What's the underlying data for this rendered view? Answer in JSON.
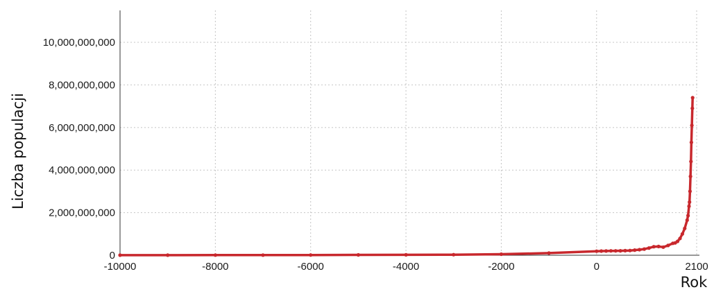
{
  "chart_data": {
    "type": "line",
    "title": "",
    "xlabel": "Rok",
    "ylabel": "Liczba populacji",
    "xlim": [
      -10000,
      2100
    ],
    "ylim": [
      0,
      11500000000
    ],
    "x_ticks": [
      -10000,
      -8000,
      -6000,
      -4000,
      -2000,
      0,
      2100
    ],
    "x_tick_labels": [
      "-10000",
      "-8000",
      "-6000",
      "-4000",
      "-2000",
      "0",
      "2100"
    ],
    "y_ticks": [
      0,
      2000000000,
      4000000000,
      6000000000,
      8000000000,
      10000000000
    ],
    "y_tick_labels": [
      "0",
      "2,000,000,000",
      "4,000,000,000",
      "6,000,000,000",
      "8,000,000,000",
      "10,000,000,000"
    ],
    "grid": true,
    "legend": "none",
    "series": [
      {
        "color": "#c8282d",
        "points": [
          [
            -10000,
            2000000
          ],
          [
            -9000,
            3000000
          ],
          [
            -8000,
            5000000
          ],
          [
            -7000,
            7000000
          ],
          [
            -6000,
            10000000
          ],
          [
            -5000,
            15000000
          ],
          [
            -4000,
            20000000
          ],
          [
            -3000,
            25000000
          ],
          [
            -2000,
            50000000
          ],
          [
            -1000,
            100000000
          ],
          [
            0,
            190000000
          ],
          [
            100,
            195000000
          ],
          [
            200,
            200000000
          ],
          [
            300,
            205000000
          ],
          [
            400,
            205000000
          ],
          [
            500,
            210000000
          ],
          [
            600,
            215000000
          ],
          [
            700,
            220000000
          ],
          [
            800,
            240000000
          ],
          [
            900,
            260000000
          ],
          [
            1000,
            290000000
          ],
          [
            1100,
            340000000
          ],
          [
            1200,
            400000000
          ],
          [
            1300,
            410000000
          ],
          [
            1400,
            380000000
          ],
          [
            1500,
            460000000
          ],
          [
            1600,
            560000000
          ],
          [
            1650,
            580000000
          ],
          [
            1700,
            650000000
          ],
          [
            1750,
            790000000
          ],
          [
            1800,
            1000000000
          ],
          [
            1850,
            1260000000
          ],
          [
            1900,
            1650000000
          ],
          [
            1920,
            1860000000
          ],
          [
            1940,
            2300000000
          ],
          [
            1950,
            2500000000
          ],
          [
            1960,
            3000000000
          ],
          [
            1970,
            3700000000
          ],
          [
            1980,
            4400000000
          ],
          [
            1990,
            5300000000
          ],
          [
            2000,
            6100000000
          ],
          [
            2010,
            6900000000
          ],
          [
            2016,
            7400000000
          ]
        ]
      }
    ]
  }
}
